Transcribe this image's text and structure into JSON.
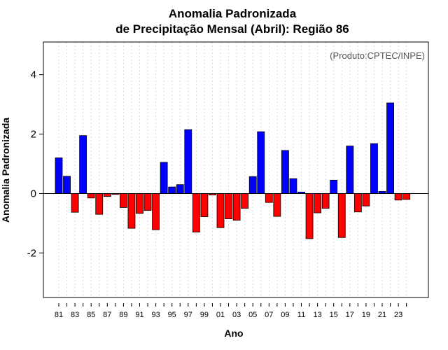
{
  "chart_data": {
    "type": "bar",
    "title_line1": "Anomalia Padronizada",
    "title_line2": "de Precipitação Mensal (Abril): Região 86",
    "xlabel": "Ano",
    "ylabel": "Anomalia Padronizada",
    "annotation": "(Produto:CPTEC/INPE)",
    "ylim": [
      -3.5,
      5.1
    ],
    "yticks": [
      -2,
      0,
      2,
      4
    ],
    "ytick_labels": [
      "-2",
      "0",
      "2",
      "4"
    ],
    "grid": true,
    "categories": [
      "1981",
      "1982",
      "1983",
      "1984",
      "1985",
      "1986",
      "1987",
      "1988",
      "1989",
      "1990",
      "1991",
      "1992",
      "1993",
      "1994",
      "1995",
      "1996",
      "1997",
      "1998",
      "1999",
      "2000",
      "2001",
      "2002",
      "2003",
      "2004",
      "2005",
      "2006",
      "2007",
      "2008",
      "2009",
      "2010",
      "2011",
      "2012",
      "2013",
      "2014",
      "2015",
      "2016",
      "2017",
      "2018",
      "2019",
      "2020",
      "2021",
      "2022",
      "2023",
      "2024"
    ],
    "xtick_labels": [
      "81",
      "83",
      "85",
      "87",
      "89",
      "91",
      "93",
      "95",
      "97",
      "99",
      "01",
      "03",
      "05",
      "07",
      "09",
      "11",
      "13",
      "15",
      "17",
      "19",
      "21",
      "23"
    ],
    "values": [
      1.2,
      0.58,
      -0.63,
      1.95,
      -0.15,
      -0.7,
      -0.1,
      -0.03,
      -0.47,
      -1.17,
      -0.67,
      -0.57,
      -1.22,
      1.05,
      0.22,
      0.3,
      2.15,
      -1.3,
      -0.78,
      -0.05,
      -1.15,
      -0.85,
      -0.9,
      -0.5,
      0.57,
      2.08,
      -0.3,
      -0.77,
      1.45,
      0.5,
      0.05,
      -1.52,
      -0.65,
      -0.5,
      0.45,
      -1.48,
      1.6,
      -0.62,
      -0.42,
      1.68,
      0.07,
      3.05,
      -0.22,
      -0.2
    ],
    "positive_color": "#0000ff",
    "negative_color": "#ff0000"
  }
}
